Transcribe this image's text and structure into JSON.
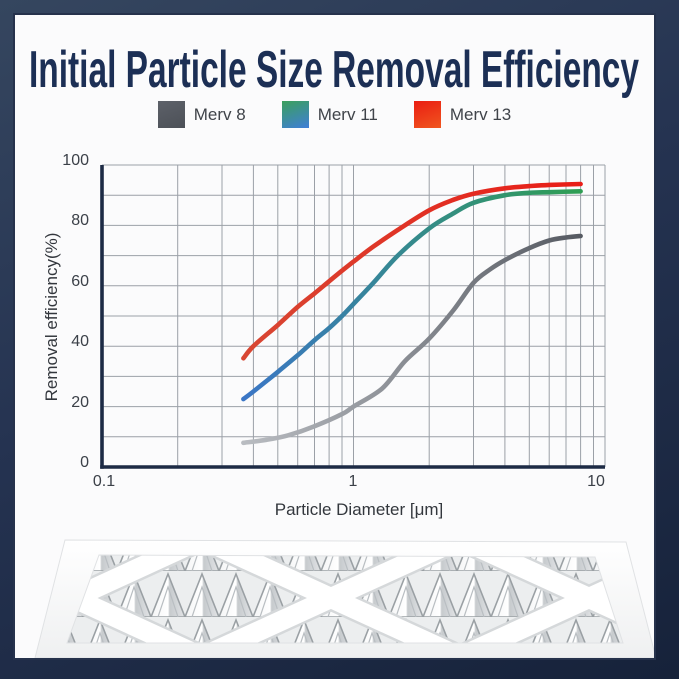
{
  "page": {
    "title": "Initial Particle Size Removal Efficiency"
  },
  "colors": {
    "background_navy": "#253351",
    "card_background": "#fbfbfc",
    "title_text": "#1c2f55",
    "grid_line": "#9ba0a7",
    "axis_line": "#1d2b45",
    "tick_text": "#3b4048"
  },
  "chart_data": {
    "type": "line",
    "title": "Initial Particle Size Removal Efficiency",
    "xlabel": "Particle Diameter [μm]",
    "ylabel": "Removal efficiency(%)",
    "x_scale": "log",
    "xlim": [
      0.1,
      10
    ],
    "ylim": [
      0,
      100
    ],
    "grid": true,
    "legend_position": "top",
    "x_tick_values": [
      0.1,
      1,
      10
    ],
    "x_tick_labels": [
      "0.1",
      "1",
      "10"
    ],
    "y_tick_values": [
      0,
      20,
      40,
      60,
      80,
      100
    ],
    "y_tick_labels": [
      "0",
      "20",
      "40",
      "60",
      "80",
      "100"
    ],
    "series": [
      {
        "name": "Merv 8",
        "color_start": "#b9bcc1",
        "color_end": "#565a62",
        "swatch_top": "#5d6169",
        "swatch_bottom": "#4c5057",
        "points": [
          [
            0.365,
            8
          ],
          [
            0.45,
            9
          ],
          [
            0.55,
            10.5
          ],
          [
            0.7,
            13.5
          ],
          [
            0.9,
            17.5
          ],
          [
            1.0,
            20
          ],
          [
            1.3,
            26
          ],
          [
            1.6,
            35
          ],
          [
            2,
            42.5
          ],
          [
            2.5,
            52
          ],
          [
            3,
            61
          ],
          [
            3.5,
            65.5
          ],
          [
            4,
            68.5
          ],
          [
            5,
            72.5
          ],
          [
            6,
            75
          ],
          [
            7,
            76
          ],
          [
            8,
            76.5
          ]
        ]
      },
      {
        "name": "Merv 11",
        "color_start": "#3b76c6",
        "color_end": "#2f9e53",
        "swatch_top": "#3ba05c",
        "swatch_bottom": "#3f7ed8",
        "points": [
          [
            0.365,
            22.5
          ],
          [
            0.4,
            25
          ],
          [
            0.5,
            31.5
          ],
          [
            0.6,
            37
          ],
          [
            0.7,
            42
          ],
          [
            0.8,
            46
          ],
          [
            0.9,
            50
          ],
          [
            1.0,
            54
          ],
          [
            1.2,
            61
          ],
          [
            1.5,
            70
          ],
          [
            2,
            79
          ],
          [
            2.5,
            84
          ],
          [
            3,
            87.5
          ],
          [
            4,
            90
          ],
          [
            5,
            90.8
          ],
          [
            6,
            91
          ],
          [
            8,
            91.3
          ]
        ]
      },
      {
        "name": "Merv 13",
        "color_start": "#d84733",
        "color_end": "#e91d17",
        "swatch_top": "#ea1d12",
        "swatch_bottom": "#f0561f",
        "points": [
          [
            0.365,
            36
          ],
          [
            0.4,
            40
          ],
          [
            0.5,
            47
          ],
          [
            0.6,
            53
          ],
          [
            0.7,
            57.5
          ],
          [
            0.8,
            61.5
          ],
          [
            0.9,
            65
          ],
          [
            1.0,
            68
          ],
          [
            1.2,
            73
          ],
          [
            1.5,
            78.5
          ],
          [
            2,
            85
          ],
          [
            2.5,
            88.5
          ],
          [
            3,
            90.5
          ],
          [
            4,
            92.3
          ],
          [
            5,
            93
          ],
          [
            6,
            93.4
          ],
          [
            8,
            93.7
          ]
        ]
      }
    ]
  }
}
